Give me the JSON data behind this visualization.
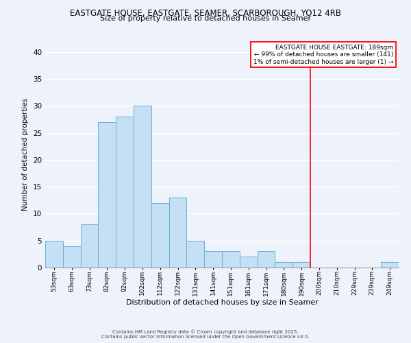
{
  "title1": "EASTGATE HOUSE, EASTGATE, SEAMER, SCARBOROUGH, YO12 4RB",
  "title2": "Size of property relative to detached houses in Seamer",
  "xlabel": "Distribution of detached houses by size in Seamer",
  "ylabel": "Number of detached properties",
  "bar_labels": [
    "53sqm",
    "63sqm",
    "73sqm",
    "82sqm",
    "92sqm",
    "102sqm",
    "112sqm",
    "122sqm",
    "131sqm",
    "141sqm",
    "151sqm",
    "161sqm",
    "171sqm",
    "180sqm",
    "190sqm",
    "200sqm",
    "210sqm",
    "229sqm",
    "239sqm",
    "249sqm"
  ],
  "bar_values": [
    5,
    4,
    8,
    27,
    28,
    30,
    12,
    13,
    5,
    3,
    3,
    2,
    3,
    1,
    1,
    0,
    0,
    0,
    0,
    1
  ],
  "bar_color": "#c5dff5",
  "bar_edge_color": "#6aaed6",
  "vline_x_idx": 14,
  "vline_color": "red",
  "ylim": [
    0,
    42
  ],
  "yticks": [
    0,
    5,
    10,
    15,
    20,
    25,
    30,
    35,
    40
  ],
  "annotation_title": "EASTGATE HOUSE EASTGATE: 189sqm",
  "annotation_line1": "← 99% of detached houses are smaller (141)",
  "annotation_line2": "1% of semi-detached houses are larger (1) →",
  "annotation_box_color": "white",
  "annotation_box_edge": "red",
  "footer1": "Contains HM Land Registry data © Crown copyright and database right 2025.",
  "footer2": "Contains public sector information licensed under the Open Government Licence v3.0.",
  "bg_color": "#eef2fb",
  "grid_color": "white"
}
